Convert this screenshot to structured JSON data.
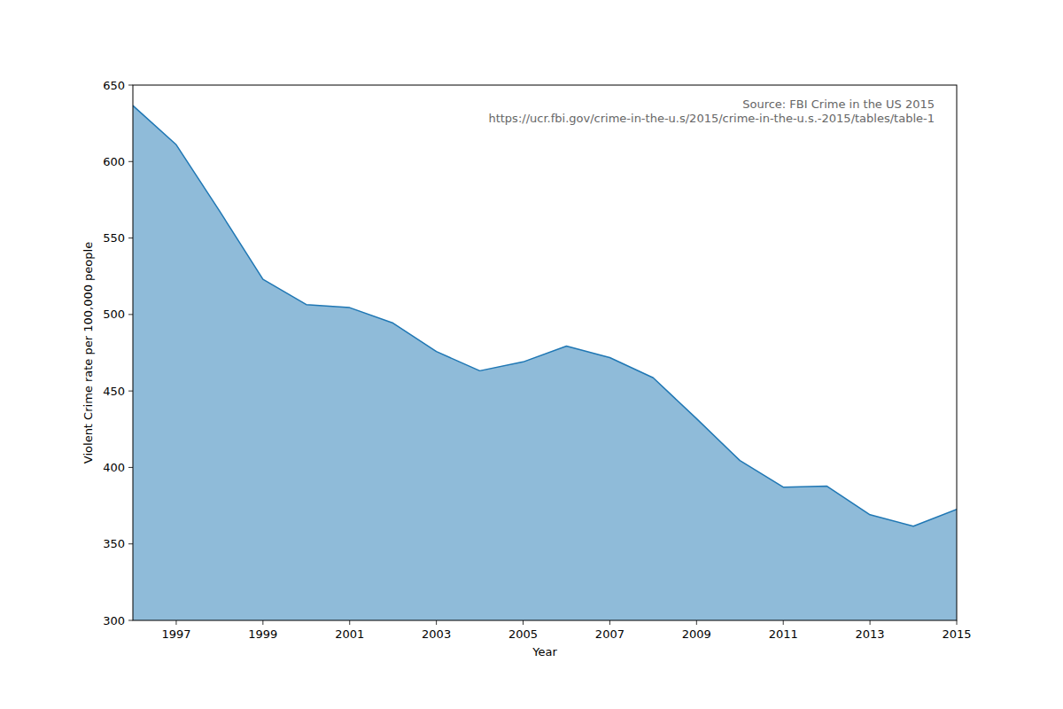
{
  "chart_data": {
    "type": "area",
    "x_label": "Year",
    "y_label": "Violent Crime rate per 100,000 people",
    "annotations": [
      "Source: FBI Crime in the US 2015",
      "https://ucr.fbi.gov/crime-in-the-u.s/2015/crime-in-the-u.s.-2015/tables/table-1"
    ],
    "x": [
      1996,
      1997,
      1998,
      1999,
      2000,
      2001,
      2002,
      2003,
      2004,
      2005,
      2006,
      2007,
      2008,
      2009,
      2010,
      2011,
      2012,
      2013,
      2014,
      2015
    ],
    "values": [
      636.6,
      611.0,
      567.6,
      523.0,
      506.5,
      504.5,
      494.4,
      475.8,
      463.2,
      469.0,
      479.3,
      471.8,
      458.6,
      431.9,
      404.5,
      387.1,
      387.8,
      369.1,
      361.6,
      372.6
    ],
    "color": "#1f77b4",
    "xlim": [
      1996,
      2015
    ],
    "xticks": [
      1997,
      1999,
      2001,
      2003,
      2005,
      2007,
      2009,
      2011,
      2013,
      2015
    ],
    "ylim": [
      300,
      650
    ],
    "yticks": [
      300,
      350,
      400,
      450,
      500,
      550,
      600,
      650
    ],
    "grid": false
  }
}
